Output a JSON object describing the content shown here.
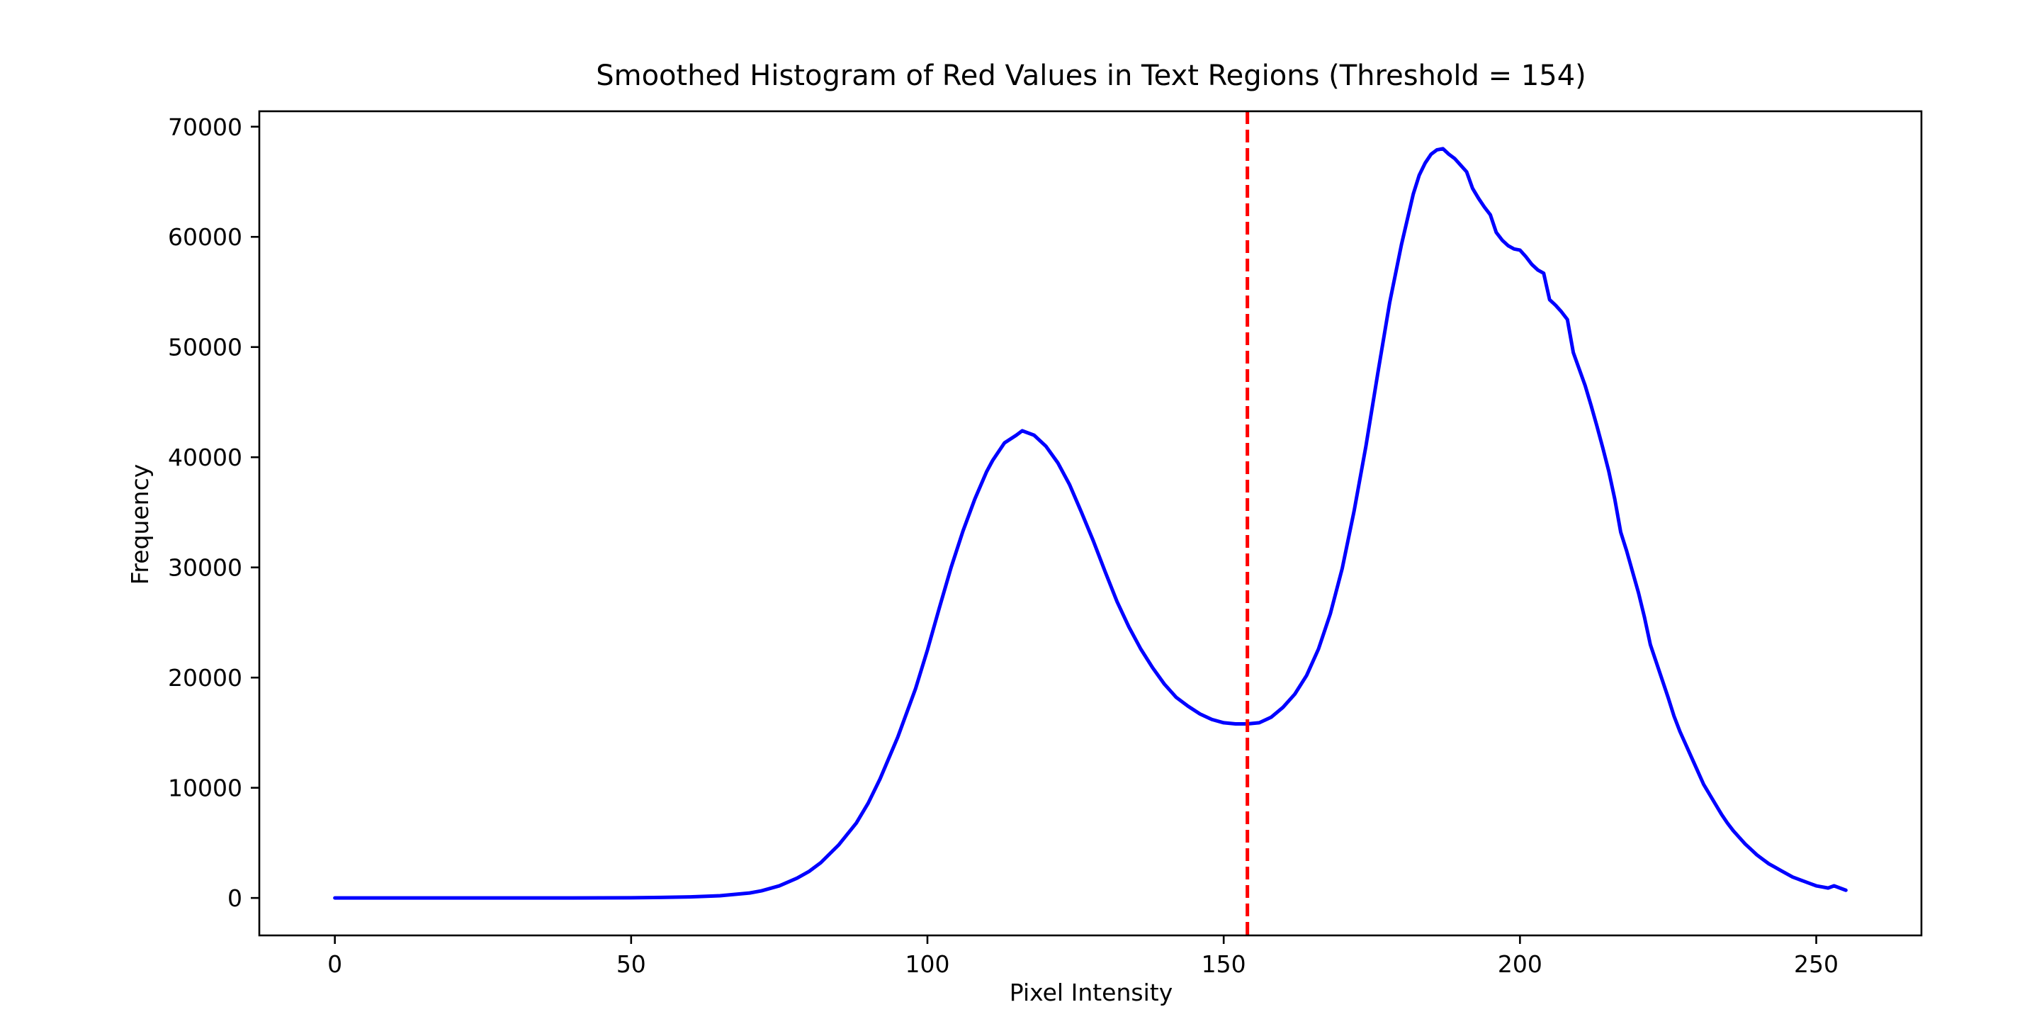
{
  "chart_data": {
    "type": "line",
    "title": "Smoothed Histogram of Red Values in Text Regions (Threshold = 154)",
    "xlabel": "Pixel Intensity",
    "ylabel": "Frequency",
    "xlim": [
      -12.75,
      267.75
    ],
    "ylim": [
      -3400,
      71400
    ],
    "xticks": [
      0,
      50,
      100,
      150,
      200,
      250
    ],
    "yticks": [
      0,
      10000,
      20000,
      30000,
      40000,
      50000,
      60000,
      70000
    ],
    "grid": false,
    "legend": false,
    "series": [
      {
        "color": "#0000ff",
        "x": [
          0,
          10,
          20,
          30,
          40,
          50,
          55,
          60,
          65,
          70,
          72,
          75,
          78,
          80,
          82,
          85,
          88,
          90,
          92,
          95,
          98,
          100,
          102,
          104,
          106,
          108,
          110,
          111,
          113,
          115,
          116,
          118,
          120,
          122,
          124,
          126,
          128,
          130,
          132,
          134,
          136,
          138,
          140,
          142,
          144,
          146,
          148,
          150,
          152,
          154,
          156,
          158,
          160,
          162,
          164,
          166,
          168,
          170,
          172,
          174,
          176,
          178,
          180,
          182,
          183,
          184,
          185,
          186,
          187,
          188,
          189,
          190,
          191,
          192,
          193,
          194,
          195,
          196,
          197,
          198,
          199,
          200,
          201,
          202,
          203,
          204,
          205,
          206,
          207,
          208,
          209,
          210,
          211,
          212,
          213,
          214,
          215,
          216,
          217,
          218,
          219,
          220,
          221,
          222,
          223,
          224,
          225,
          226,
          227,
          228,
          229,
          230,
          231,
          232,
          233,
          234,
          235,
          236,
          237,
          238,
          239,
          240,
          241,
          242,
          243,
          244,
          245,
          246,
          247,
          248,
          249,
          250,
          251,
          252,
          253,
          254,
          255
        ],
        "y": [
          0,
          0,
          0,
          0,
          0,
          20,
          50,
          100,
          200,
          450,
          650,
          1100,
          1800,
          2400,
          3200,
          4800,
          6800,
          8600,
          10800,
          14600,
          19000,
          22500,
          26300,
          30000,
          33300,
          36200,
          38700,
          39700,
          41300,
          42000,
          42400,
          42000,
          41000,
          39500,
          37500,
          35000,
          32400,
          29600,
          26900,
          24600,
          22600,
          20900,
          19400,
          18200,
          17400,
          16700,
          16200,
          15900,
          15800,
          15800,
          15900,
          16400,
          17300,
          18500,
          20200,
          22600,
          25800,
          29900,
          35100,
          41000,
          47600,
          54000,
          59300,
          63900,
          65600,
          66700,
          67500,
          67900,
          68000,
          67500,
          67100,
          66500,
          65900,
          64400,
          63500,
          62700,
          62000,
          60400,
          59700,
          59200,
          58900,
          58800,
          58200,
          57500,
          57000,
          56700,
          54300,
          53800,
          53200,
          52500,
          49500,
          48000,
          46500,
          44700,
          42800,
          40800,
          38700,
          36200,
          33200,
          31500,
          29600,
          27700,
          25500,
          23000,
          21400,
          19800,
          18200,
          16500,
          15100,
          13900,
          12700,
          11500,
          10300,
          9400,
          8500,
          7600,
          6800,
          6100,
          5500,
          4900,
          4400,
          3900,
          3500,
          3100,
          2800,
          2500,
          2200,
          1900,
          1700,
          1500,
          1300,
          1100,
          1000,
          900,
          1100,
          900,
          700
        ]
      }
    ],
    "reference_lines": [
      {
        "orientation": "vertical",
        "x": 154,
        "color": "#ff0000",
        "style": "dashed"
      }
    ]
  }
}
